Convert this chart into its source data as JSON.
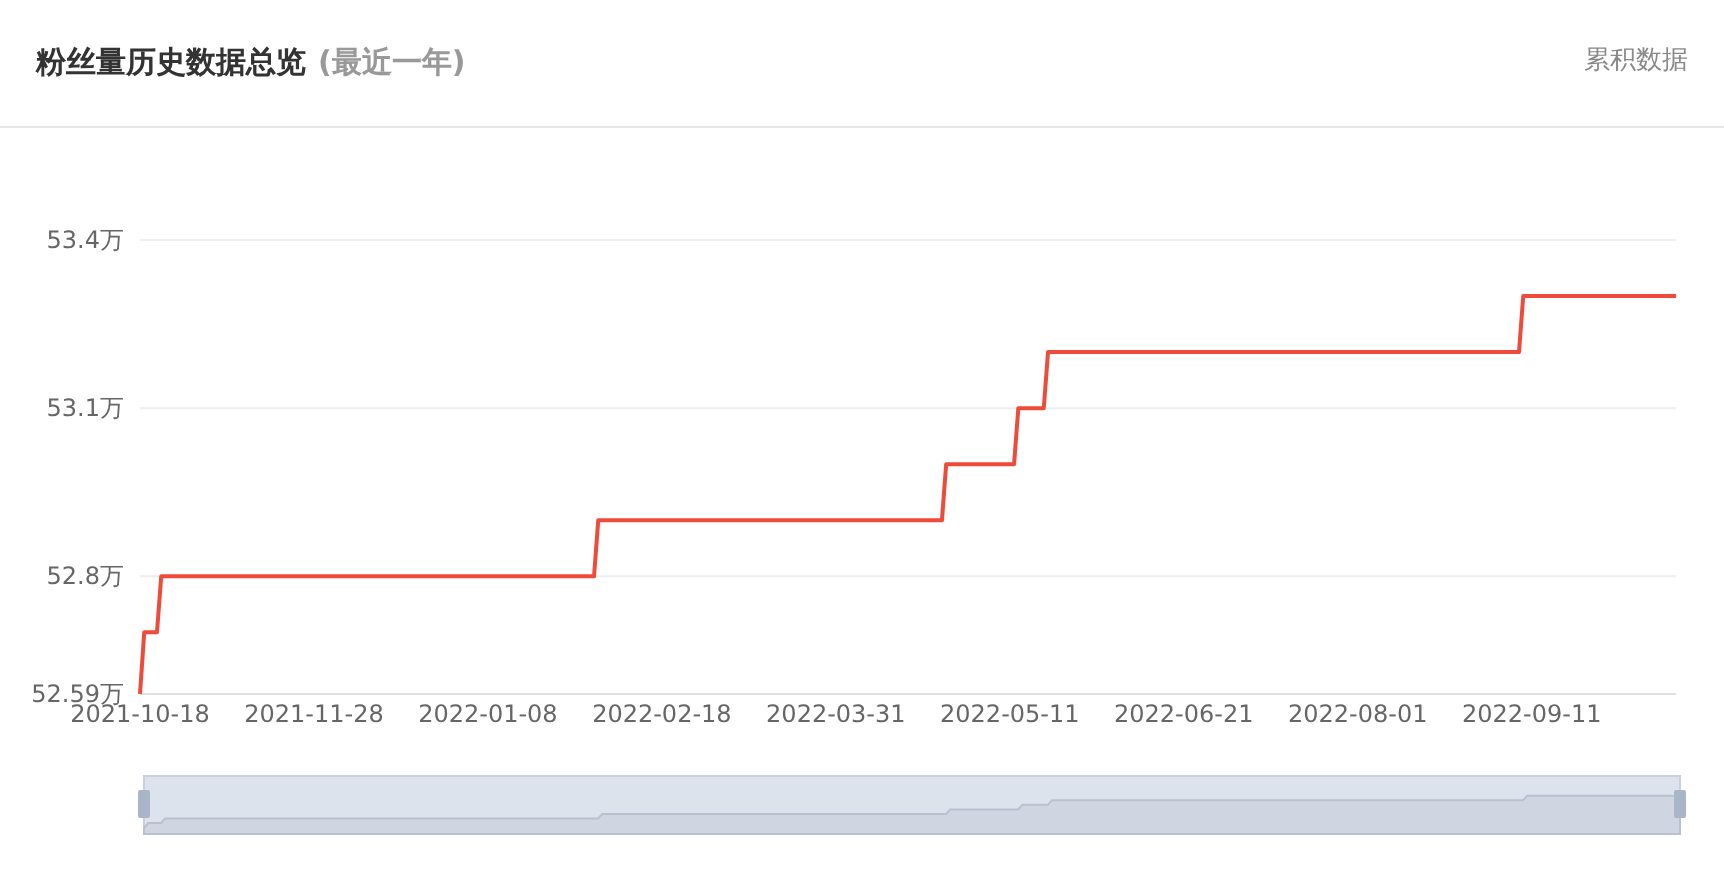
{
  "chart_data": {
    "type": "line",
    "title": "粉丝量历史数据总览",
    "subtitle": "(最近一年)",
    "annotations": [
      "累积数据"
    ],
    "x": [
      "2021-10-18",
      "2021-10-19",
      "2021-10-22",
      "2021-10-23",
      "2022-02-02",
      "2022-02-03",
      "2022-04-25",
      "2022-04-26",
      "2022-05-12",
      "2022-05-13",
      "2022-05-19",
      "2022-05-20",
      "2022-09-08",
      "2022-09-09",
      "2022-10-15"
    ],
    "series": [
      {
        "color": "#ee4b3b",
        "values": [
          52.59,
          52.7,
          52.7,
          52.8,
          52.8,
          52.9,
          52.9,
          53.0,
          53.0,
          53.1,
          53.1,
          53.2,
          53.2,
          53.3,
          53.3
        ]
      }
    ],
    "xlim": [
      "2021-10-18",
      "2022-10-15"
    ],
    "xticks": [
      "2021-10-18",
      "2021-11-28",
      "2022-01-08",
      "2022-02-18",
      "2022-03-31",
      "2022-05-11",
      "2022-06-21",
      "2022-08-01",
      "2022-09-11"
    ],
    "ylim": [
      52.59,
      53.4
    ],
    "yticks": [
      {
        "value": 52.59,
        "label": "52.59万"
      },
      {
        "value": 52.8,
        "label": "52.8万"
      },
      {
        "value": 53.1,
        "label": "53.1万"
      },
      {
        "value": 53.4,
        "label": "53.4万"
      }
    ],
    "grid": "y",
    "marker": "none",
    "line_style": "solid"
  }
}
